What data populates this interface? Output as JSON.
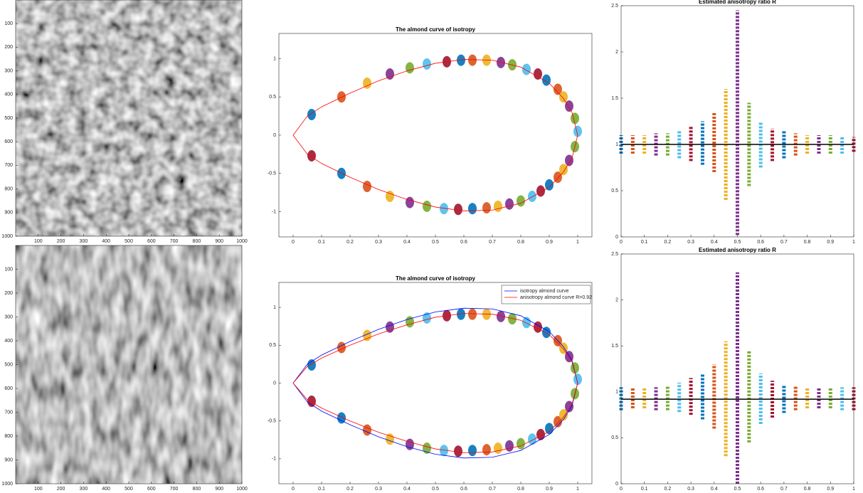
{
  "chart_data": [
    {
      "type": "image",
      "y_reversed": true,
      "xlim": [
        0,
        1000
      ],
      "ylim": [
        0,
        1000
      ],
      "xticks": [
        100,
        200,
        300,
        400,
        500,
        600,
        700,
        800,
        900,
        1000
      ],
      "yticks": [
        100,
        200,
        300,
        400,
        500,
        600,
        700,
        800,
        900,
        1000
      ],
      "texture": "isotropic"
    },
    {
      "type": "almond",
      "title": "The almond curve of isotropy",
      "xlim": [
        -0.05,
        1.05
      ],
      "ylim": [
        -1.33,
        1.33
      ],
      "xticks": [
        0,
        0.1,
        0.2,
        0.3,
        0.4,
        0.5,
        0.6,
        0.7,
        0.8,
        0.9,
        1
      ],
      "yticks": [
        -1,
        -0.5,
        0,
        0.5,
        1
      ],
      "palette": [
        "#0072BD",
        "#D95319",
        "#EDB120",
        "#7E2F8E",
        "#77AC30",
        "#4DBEEE",
        "#A2142F"
      ],
      "clusters": {
        "x": [
          0.065,
          0.17,
          0.26,
          0.34,
          0.41,
          0.47,
          0.54,
          0.59,
          0.63,
          0.68,
          0.73,
          0.77,
          0.82,
          0.86,
          0.89,
          0.93,
          0.95,
          0.97,
          0.99,
          1.0,
          0.065,
          0.17,
          0.26,
          0.34,
          0.41,
          0.47,
          0.53,
          0.58,
          0.63,
          0.68,
          0.72,
          0.76,
          0.8,
          0.84,
          0.87,
          0.9,
          0.93,
          0.95,
          0.97,
          0.99
        ],
        "y": [
          0.27,
          0.5,
          0.68,
          0.8,
          0.88,
          0.93,
          0.96,
          0.98,
          0.98,
          0.98,
          0.95,
          0.92,
          0.86,
          0.8,
          0.72,
          0.6,
          0.5,
          0.38,
          0.22,
          0.05,
          -0.27,
          -0.5,
          -0.67,
          -0.8,
          -0.88,
          -0.93,
          -0.96,
          -0.97,
          -0.96,
          -0.95,
          -0.93,
          -0.9,
          -0.86,
          -0.8,
          -0.73,
          -0.65,
          -0.55,
          -0.45,
          -0.33,
          -0.15
        ]
      },
      "series": [
        {
          "color": "#ff0000",
          "x": [
            0,
            0.05,
            0.1,
            0.2,
            0.3,
            0.4,
            0.5,
            0.6,
            0.7,
            0.8,
            0.9,
            0.95,
            0.98,
            1,
            0.98,
            0.95,
            0.9,
            0.8,
            0.7,
            0.6,
            0.5,
            0.4,
            0.3,
            0.2,
            0.1,
            0.05,
            0
          ],
          "y": [
            0,
            0.25,
            0.37,
            0.55,
            0.71,
            0.84,
            0.94,
            0.99,
            0.98,
            0.89,
            0.68,
            0.48,
            0.3,
            0,
            -0.3,
            -0.48,
            -0.68,
            -0.89,
            -0.98,
            -0.99,
            -0.94,
            -0.84,
            -0.71,
            -0.55,
            -0.37,
            -0.25,
            0
          ]
        }
      ]
    },
    {
      "type": "ratio",
      "title": "Estimated anisotropy ratio R",
      "xlim": [
        0,
        1
      ],
      "ylim": [
        0,
        2.5
      ],
      "xticks": [
        0,
        0.1,
        0.2,
        0.3,
        0.4,
        0.5,
        0.6,
        0.7,
        0.8,
        0.9,
        1
      ],
      "yticks": [
        0,
        0.5,
        1,
        1.5,
        2,
        2.5
      ],
      "palette": [
        "#0072BD",
        "#D95319",
        "#EDB120",
        "#7E2F8E",
        "#77AC30",
        "#4DBEEE",
        "#A2142F"
      ],
      "reference_line": {
        "value": 1,
        "color": "#000000"
      },
      "columns": {
        "x": [
          0,
          0.05,
          0.1,
          0.15,
          0.2,
          0.25,
          0.3,
          0.35,
          0.4,
          0.45,
          0.5,
          0.55,
          0.6,
          0.65,
          0.7,
          0.75,
          0.8,
          0.85,
          0.9,
          0.95,
          1
        ],
        "low": [
          0.9,
          0.9,
          0.9,
          0.88,
          0.88,
          0.85,
          0.82,
          0.78,
          0.7,
          0.4,
          0.02,
          0.55,
          0.75,
          0.82,
          0.85,
          0.88,
          0.9,
          0.9,
          0.9,
          0.9,
          0.92
        ],
        "high": [
          1.1,
          1.1,
          1.1,
          1.12,
          1.12,
          1.15,
          1.2,
          1.25,
          1.35,
          1.6,
          2.45,
          1.45,
          1.25,
          1.17,
          1.15,
          1.12,
          1.1,
          1.1,
          1.1,
          1.08,
          1.08
        ]
      }
    },
    {
      "type": "image",
      "y_reversed": true,
      "xlim": [
        0,
        1000
      ],
      "ylim": [
        0,
        1000
      ],
      "xticks": [
        100,
        200,
        300,
        400,
        500,
        600,
        700,
        800,
        900,
        1000
      ],
      "yticks": [
        100,
        200,
        300,
        400,
        500,
        600,
        700,
        800,
        900,
        1000
      ],
      "texture": "anisotropic"
    },
    {
      "type": "almond",
      "title": "The almond curve of isotropy",
      "xlim": [
        -0.05,
        1.05
      ],
      "ylim": [
        -1.33,
        1.33
      ],
      "xticks": [
        0,
        0.1,
        0.2,
        0.3,
        0.4,
        0.5,
        0.6,
        0.7,
        0.8,
        0.9,
        1
      ],
      "yticks": [
        -1,
        -0.5,
        0,
        0.5,
        1
      ],
      "legend": "upper right",
      "palette": [
        "#0072BD",
        "#D95319",
        "#EDB120",
        "#7E2F8E",
        "#77AC30",
        "#4DBEEE",
        "#A2142F"
      ],
      "clusters": {
        "x": [
          0.065,
          0.17,
          0.26,
          0.34,
          0.41,
          0.47,
          0.54,
          0.59,
          0.63,
          0.68,
          0.73,
          0.77,
          0.82,
          0.86,
          0.89,
          0.93,
          0.95,
          0.97,
          0.99,
          1.0,
          0.065,
          0.17,
          0.26,
          0.34,
          0.41,
          0.47,
          0.53,
          0.58,
          0.63,
          0.68,
          0.72,
          0.76,
          0.8,
          0.84,
          0.87,
          0.9,
          0.93,
          0.95,
          0.97,
          0.99
        ],
        "y": [
          0.24,
          0.47,
          0.63,
          0.74,
          0.81,
          0.86,
          0.89,
          0.91,
          0.91,
          0.91,
          0.88,
          0.85,
          0.8,
          0.74,
          0.67,
          0.56,
          0.46,
          0.35,
          0.2,
          0.05,
          -0.24,
          -0.46,
          -0.62,
          -0.74,
          -0.81,
          -0.86,
          -0.89,
          -0.9,
          -0.89,
          -0.88,
          -0.86,
          -0.83,
          -0.8,
          -0.74,
          -0.68,
          -0.6,
          -0.51,
          -0.42,
          -0.31,
          -0.14
        ]
      },
      "series": [
        {
          "name": "isotropy almond curve",
          "color": "#0000ff",
          "x": [
            0,
            0.05,
            0.1,
            0.2,
            0.3,
            0.4,
            0.5,
            0.6,
            0.7,
            0.8,
            0.9,
            0.95,
            0.98,
            1,
            0.98,
            0.95,
            0.9,
            0.8,
            0.7,
            0.6,
            0.5,
            0.4,
            0.3,
            0.2,
            0.1,
            0.05,
            0
          ],
          "y": [
            0,
            0.25,
            0.37,
            0.55,
            0.71,
            0.84,
            0.94,
            0.99,
            0.98,
            0.89,
            0.68,
            0.48,
            0.3,
            0,
            -0.3,
            -0.48,
            -0.68,
            -0.89,
            -0.98,
            -0.99,
            -0.94,
            -0.84,
            -0.71,
            -0.55,
            -0.37,
            -0.25,
            0
          ]
        },
        {
          "name": "anisotropy almond curve R=0.92",
          "color": "#ff0000",
          "x": [
            0,
            0.05,
            0.1,
            0.2,
            0.3,
            0.4,
            0.5,
            0.6,
            0.7,
            0.8,
            0.9,
            0.95,
            0.98,
            1,
            0.98,
            0.95,
            0.9,
            0.8,
            0.7,
            0.6,
            0.5,
            0.4,
            0.3,
            0.2,
            0.1,
            0.05,
            0
          ],
          "y": [
            0,
            0.22,
            0.33,
            0.5,
            0.65,
            0.77,
            0.87,
            0.92,
            0.91,
            0.83,
            0.64,
            0.45,
            0.28,
            0,
            -0.28,
            -0.45,
            -0.64,
            -0.83,
            -0.91,
            -0.92,
            -0.87,
            -0.77,
            -0.65,
            -0.5,
            -0.33,
            -0.22,
            0
          ]
        }
      ]
    },
    {
      "type": "ratio",
      "title": "Estimated anisotropy ratio R",
      "xlim": [
        0,
        1
      ],
      "ylim": [
        0,
        2.5
      ],
      "xticks": [
        0,
        0.1,
        0.2,
        0.3,
        0.4,
        0.5,
        0.6,
        0.7,
        0.8,
        0.9,
        1
      ],
      "yticks": [
        0,
        0.5,
        1,
        1.5,
        2,
        2.5
      ],
      "palette": [
        "#0072BD",
        "#D95319",
        "#EDB120",
        "#7E2F8E",
        "#77AC30",
        "#4DBEEE",
        "#A2142F"
      ],
      "reference_line": {
        "value": 0.92,
        "color": "#000000"
      },
      "columns": {
        "x": [
          0,
          0.05,
          0.1,
          0.15,
          0.2,
          0.25,
          0.3,
          0.35,
          0.4,
          0.45,
          0.5,
          0.55,
          0.6,
          0.65,
          0.7,
          0.75,
          0.8,
          0.85,
          0.9,
          0.95,
          1
        ],
        "low": [
          0.8,
          0.82,
          0.82,
          0.8,
          0.8,
          0.78,
          0.75,
          0.7,
          0.6,
          0.3,
          0.0,
          0.45,
          0.65,
          0.72,
          0.77,
          0.8,
          0.82,
          0.82,
          0.82,
          0.8,
          0.8
        ],
        "high": [
          1.05,
          1.05,
          1.05,
          1.05,
          1.07,
          1.1,
          1.15,
          1.2,
          1.3,
          1.55,
          2.3,
          1.45,
          1.2,
          1.12,
          1.08,
          1.06,
          1.05,
          1.05,
          1.05,
          1.05,
          1.05
        ]
      }
    }
  ]
}
